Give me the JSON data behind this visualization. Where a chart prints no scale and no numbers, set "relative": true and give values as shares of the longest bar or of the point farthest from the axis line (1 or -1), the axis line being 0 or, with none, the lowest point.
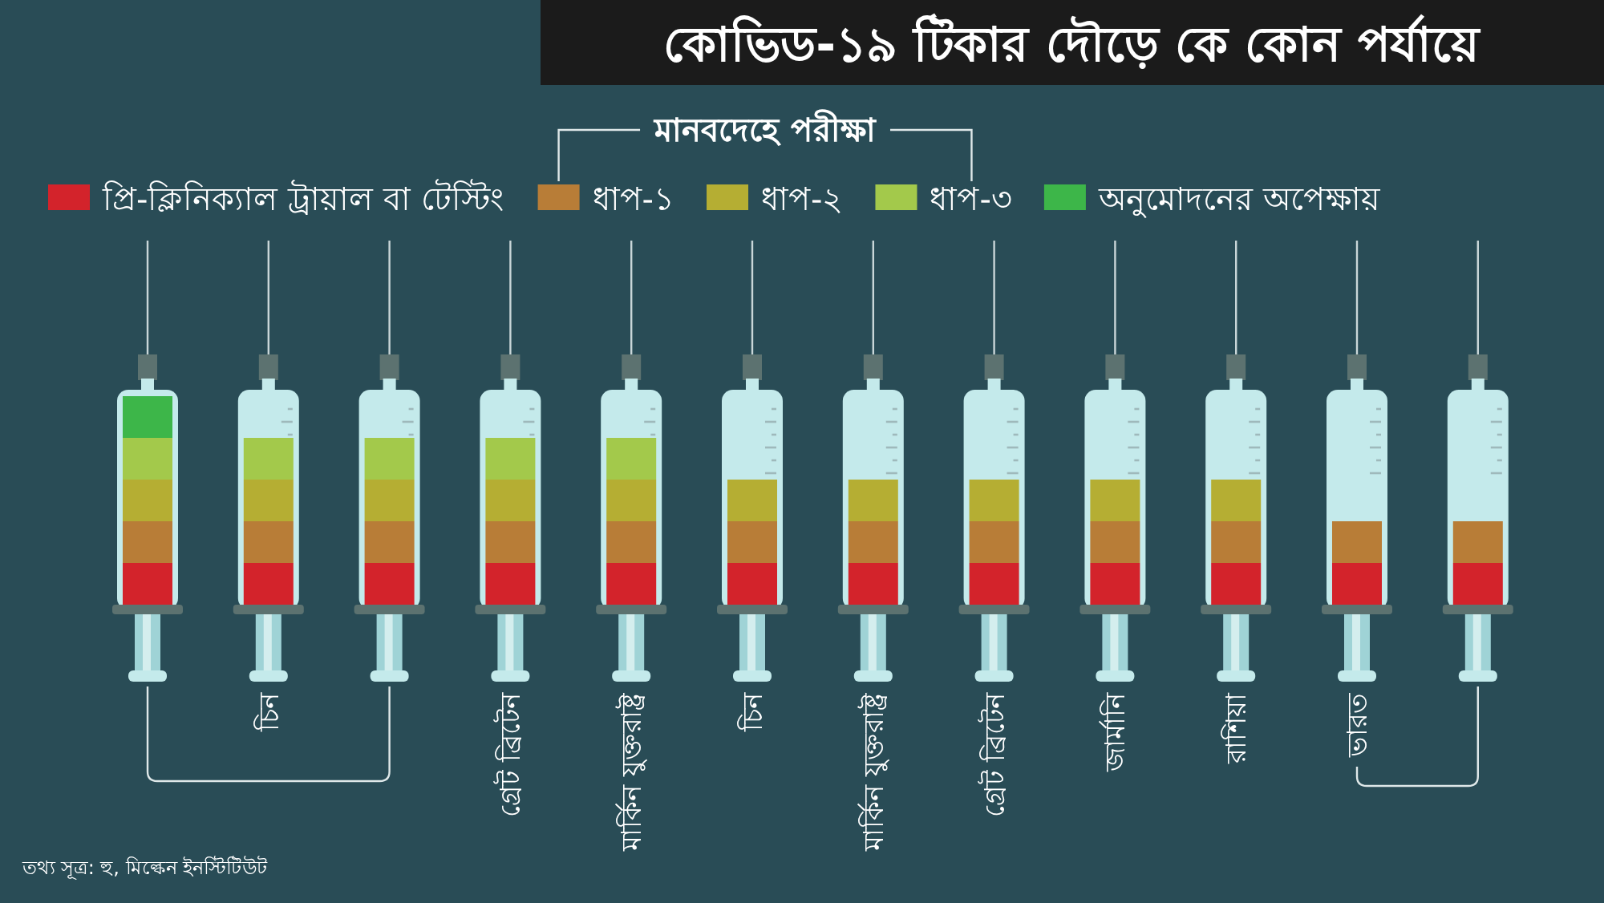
{
  "chart_data": {
    "type": "bar",
    "stacked": true,
    "relative": true,
    "title": "কোভিড-১৯ টিকার দৌড়ে কে কোন পর্যায়ে",
    "legend_title": "মানবদেহে পরীক্ষা",
    "legend": "top",
    "categories": [
      null,
      "চিন",
      null,
      "গ্রেট ব্রিটেন",
      "মার্কিন যুক্তরাষ্ট্র",
      "চিন",
      "মার্কিন যুক্তরাষ্ট্র",
      "গ্রেট ব্রিটেন",
      "জার্মানি",
      "রাশিয়া",
      "ভারত",
      null
    ],
    "series": [
      {
        "name": "প্রি-ক্লিনিক্যাল ট্রায়াল বা টেস্টিং",
        "color": "#d3232b",
        "values": [
          0.2,
          0.2,
          0.2,
          0.2,
          0.2,
          0.2,
          0.2,
          0.2,
          0.2,
          0.2,
          0.2,
          0.2
        ]
      },
      {
        "name": "ধাপ-১",
        "color": "#b87d37",
        "values": [
          0.2,
          0.2,
          0.2,
          0.2,
          0.2,
          0.2,
          0.2,
          0.2,
          0.2,
          0.2,
          0.2,
          0.2
        ]
      },
      {
        "name": "ধাপ-২",
        "color": "#b5ae33",
        "values": [
          0.2,
          0.2,
          0.2,
          0.2,
          0.2,
          0.2,
          0.2,
          0.2,
          0.2,
          0.2,
          null,
          null
        ]
      },
      {
        "name": "ধাপ-৩",
        "color": "#a3c94b",
        "values": [
          0.2,
          0.2,
          0.2,
          0.2,
          0.2,
          null,
          null,
          null,
          null,
          null,
          null,
          null
        ]
      },
      {
        "name": "অনুমোদনের অপেক্ষায়",
        "color": "#3db649",
        "values": [
          0.2,
          null,
          null,
          null,
          null,
          null,
          null,
          null,
          null,
          null,
          null,
          null
        ]
      }
    ],
    "annotations": [
      "তথ্য সূত্র: হু, মিল্কেন ইনস্টিটিউট"
    ]
  }
}
